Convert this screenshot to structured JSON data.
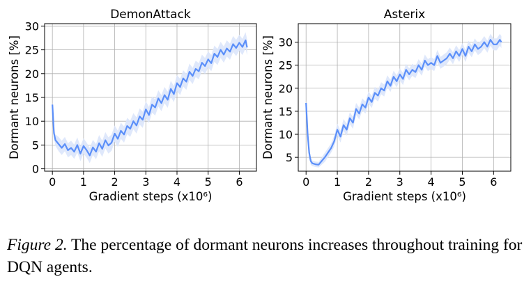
{
  "chart_data": [
    {
      "type": "line",
      "title": "DemonAttack",
      "xlabel": "Gradient steps (x10⁶)",
      "ylabel": "Dormant neurons [%]",
      "xlim": [
        -0.25,
        6.55
      ],
      "ylim": [
        -0.5,
        30.5
      ],
      "xticks": [
        0,
        1,
        2,
        3,
        4,
        5,
        6
      ],
      "yticks": [
        0,
        5,
        10,
        15,
        20,
        25,
        30
      ],
      "grid": true,
      "line_color": "#5b8ff9",
      "band_color": "#dce6fb",
      "series": [
        {
          "x": [
            0.0,
            0.05,
            0.1,
            0.2,
            0.3,
            0.4,
            0.5,
            0.6,
            0.7,
            0.8,
            0.9,
            1.0,
            1.1,
            1.2,
            1.3,
            1.4,
            1.5,
            1.6,
            1.7,
            1.8,
            1.9,
            2.0,
            2.1,
            2.2,
            2.3,
            2.4,
            2.5,
            2.6,
            2.7,
            2.8,
            2.9,
            3.0,
            3.1,
            3.2,
            3.3,
            3.4,
            3.5,
            3.6,
            3.7,
            3.8,
            3.9,
            4.0,
            4.1,
            4.2,
            4.3,
            4.4,
            4.5,
            4.6,
            4.7,
            4.8,
            4.9,
            5.0,
            5.1,
            5.2,
            5.3,
            5.4,
            5.5,
            5.6,
            5.7,
            5.8,
            5.9,
            6.0,
            6.1,
            6.2,
            6.25
          ],
          "values": [
            13.5,
            7.5,
            6.0,
            5.2,
            4.4,
            5.2,
            3.9,
            4.4,
            3.6,
            5.0,
            3.2,
            4.8,
            3.9,
            2.8,
            4.5,
            3.6,
            5.4,
            4.2,
            6.0,
            4.9,
            5.5,
            7.4,
            6.3,
            8.0,
            7.2,
            9.0,
            8.4,
            10.0,
            9.1,
            11.0,
            10.3,
            12.5,
            11.3,
            13.5,
            12.9,
            14.8,
            13.8,
            15.5,
            14.5,
            16.8,
            15.7,
            18.0,
            17.2,
            19.0,
            18.3,
            20.4,
            19.5,
            21.0,
            20.5,
            22.3,
            21.6,
            23.0,
            22.2,
            24.2,
            23.5,
            25.0,
            24.0,
            25.3,
            24.6,
            26.2,
            25.4,
            26.5,
            25.6,
            27.0,
            25.5
          ],
          "spread": [
            0.5,
            1.0,
            1.2,
            1.5,
            1.5,
            1.5,
            1.5,
            1.5,
            1.5,
            1.6,
            1.6,
            1.6,
            1.6,
            1.6,
            1.6,
            1.6,
            1.7,
            1.7,
            1.7,
            1.7,
            1.7,
            1.7,
            1.7,
            1.7,
            1.7,
            1.7,
            1.7,
            1.7,
            1.7,
            1.7,
            1.7,
            1.7,
            1.7,
            1.7,
            1.7,
            1.7,
            1.7,
            1.7,
            1.7,
            1.7,
            1.7,
            1.7,
            1.7,
            1.7,
            1.7,
            1.7,
            1.7,
            1.7,
            1.7,
            1.7,
            1.7,
            1.7,
            1.7,
            1.7,
            1.7,
            1.7,
            1.7,
            1.7,
            1.7,
            1.7,
            1.7,
            1.7,
            1.7,
            1.7,
            1.7
          ]
        }
      ]
    },
    {
      "type": "line",
      "title": "Asterix",
      "xlabel": "Gradient steps (x10⁶)",
      "ylabel": "Dormant neurons [%]",
      "xlim": [
        -0.25,
        6.55
      ],
      "ylim": [
        2.0,
        34.0
      ],
      "xticks": [
        0,
        1,
        2,
        3,
        4,
        5,
        6
      ],
      "yticks": [
        5,
        10,
        15,
        20,
        25,
        30
      ],
      "grid": true,
      "line_color": "#5b8ff9",
      "band_color": "#dce6fb",
      "series": [
        {
          "x": [
            0.0,
            0.05,
            0.1,
            0.15,
            0.2,
            0.3,
            0.4,
            0.5,
            0.6,
            0.7,
            0.8,
            0.9,
            1.0,
            1.1,
            1.2,
            1.3,
            1.4,
            1.5,
            1.6,
            1.7,
            1.8,
            1.9,
            2.0,
            2.1,
            2.2,
            2.3,
            2.4,
            2.5,
            2.6,
            2.7,
            2.8,
            2.9,
            3.0,
            3.1,
            3.2,
            3.3,
            3.4,
            3.5,
            3.6,
            3.7,
            3.8,
            3.9,
            4.0,
            4.1,
            4.2,
            4.3,
            4.4,
            4.5,
            4.6,
            4.7,
            4.8,
            4.9,
            5.0,
            5.1,
            5.2,
            5.3,
            5.4,
            5.5,
            5.6,
            5.7,
            5.8,
            5.9,
            6.0,
            6.1,
            6.2,
            6.25
          ],
          "values": [
            16.8,
            10.0,
            6.0,
            4.2,
            3.7,
            3.5,
            3.4,
            4.2,
            5.0,
            6.0,
            7.0,
            8.5,
            11.0,
            9.5,
            12.0,
            11.0,
            13.5,
            12.5,
            15.5,
            14.5,
            16.5,
            15.8,
            18.0,
            17.0,
            19.0,
            18.4,
            20.0,
            19.5,
            21.5,
            20.5,
            22.5,
            21.5,
            23.0,
            22.0,
            24.0,
            23.0,
            24.0,
            23.5,
            25.0,
            24.0,
            26.0,
            25.0,
            25.5,
            25.0,
            27.0,
            25.5,
            26.0,
            26.5,
            27.5,
            26.5,
            28.0,
            27.0,
            28.5,
            27.0,
            29.0,
            28.0,
            29.5,
            28.5,
            29.0,
            30.0,
            29.0,
            30.5,
            29.5,
            29.5,
            30.5,
            30.0
          ],
          "spread": [
            0.6,
            0.9,
            1.0,
            0.8,
            0.6,
            0.6,
            0.6,
            0.8,
            1.0,
            1.0,
            1.0,
            1.2,
            1.3,
            1.3,
            1.3,
            1.3,
            1.3,
            1.3,
            1.3,
            1.3,
            1.3,
            1.3,
            1.3,
            1.3,
            1.3,
            1.3,
            1.3,
            1.3,
            1.3,
            1.3,
            1.3,
            1.3,
            1.3,
            1.3,
            1.3,
            1.3,
            1.3,
            1.3,
            1.3,
            1.3,
            1.3,
            1.3,
            1.3,
            1.3,
            1.3,
            1.3,
            1.3,
            1.3,
            1.3,
            1.3,
            1.3,
            1.3,
            1.3,
            1.3,
            1.3,
            1.3,
            1.3,
            1.3,
            1.3,
            1.3,
            1.3,
            1.3,
            1.3,
            1.3,
            1.3,
            1.3
          ]
        }
      ]
    }
  ],
  "caption": {
    "lead": "Figure 2.",
    "text": " The percentage of dormant neurons increases throughout training for DQN agents."
  }
}
